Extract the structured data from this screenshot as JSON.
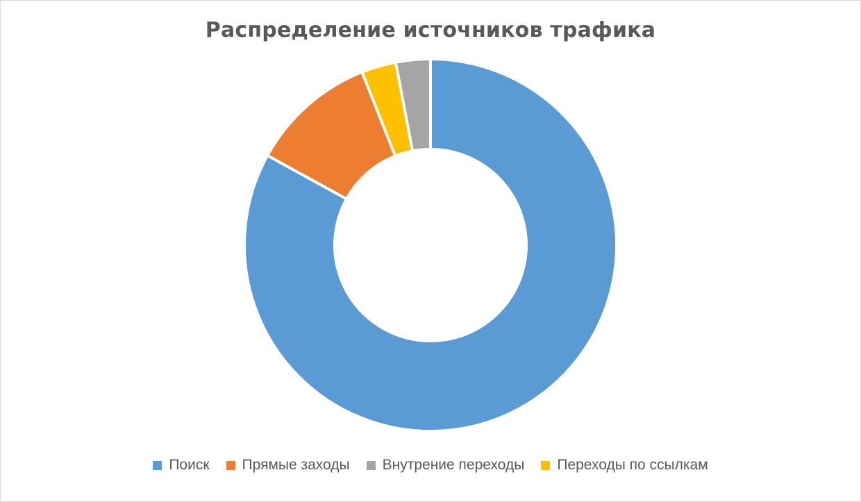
{
  "chart_data": {
    "type": "pie",
    "variant": "donut",
    "title": "Распределение источников трафика",
    "series": [
      {
        "name": "Поиск",
        "value": 83,
        "color": "#5B9BD5"
      },
      {
        "name": "Прямые заходы",
        "value": 11,
        "color": "#ED7D31"
      },
      {
        "name": "Внутрение переходы",
        "value": 3,
        "color": "#A5A5A5"
      },
      {
        "name": "Переходы по ссылкам",
        "value": 3,
        "color": "#FFC000"
      }
    ],
    "slice_order_clockwise_from_top": [
      "Поиск",
      "Прямые заходы",
      "Переходы по ссылкам",
      "Внутрение переходы"
    ],
    "legend_position": "bottom"
  }
}
